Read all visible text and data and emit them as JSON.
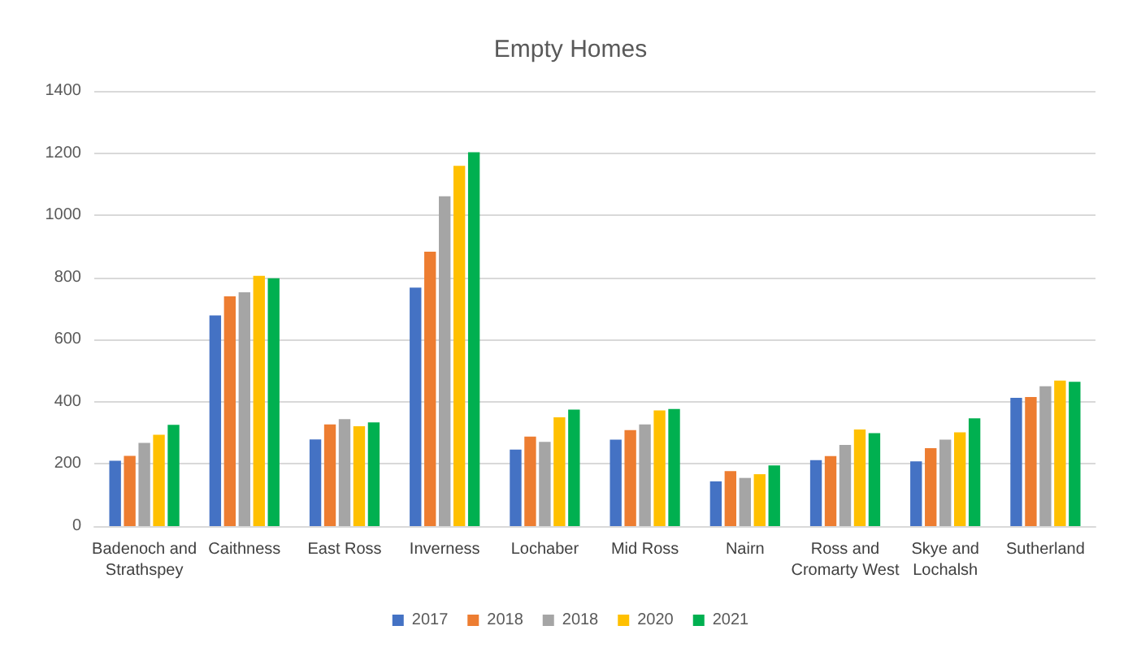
{
  "chart_data": {
    "type": "bar",
    "title": "Empty Homes",
    "categories": [
      "Badenoch and Strathspey",
      "Caithness",
      "East Ross",
      "Inverness",
      "Lochaber",
      "Mid Ross",
      "Nairn",
      "Ross and Cromarty West",
      "Skye and Lochalsh",
      "Sutherland"
    ],
    "series": [
      {
        "name": "2017",
        "color": "#4472c4",
        "values": [
          210,
          678,
          279,
          767,
          246,
          278,
          144,
          212,
          208,
          413
        ]
      },
      {
        "name": "2018",
        "color": "#ed7d31",
        "values": [
          226,
          739,
          327,
          883,
          288,
          309,
          177,
          225,
          251,
          415
        ]
      },
      {
        "name": "2018",
        "color": "#a5a5a5",
        "values": [
          268,
          752,
          344,
          1061,
          271,
          327,
          155,
          261,
          278,
          450
        ]
      },
      {
        "name": "2020",
        "color": "#ffc000",
        "values": [
          294,
          805,
          321,
          1159,
          350,
          372,
          167,
          311,
          302,
          468
        ]
      },
      {
        "name": "2021",
        "color": "#00b050",
        "values": [
          326,
          797,
          334,
          1203,
          375,
          377,
          195,
          299,
          347,
          464
        ]
      }
    ],
    "ylim": [
      0,
      1400
    ],
    "yticks": [
      0,
      200,
      400,
      600,
      800,
      1000,
      1200,
      1400
    ],
    "grid": "y",
    "legend": "bottom"
  }
}
